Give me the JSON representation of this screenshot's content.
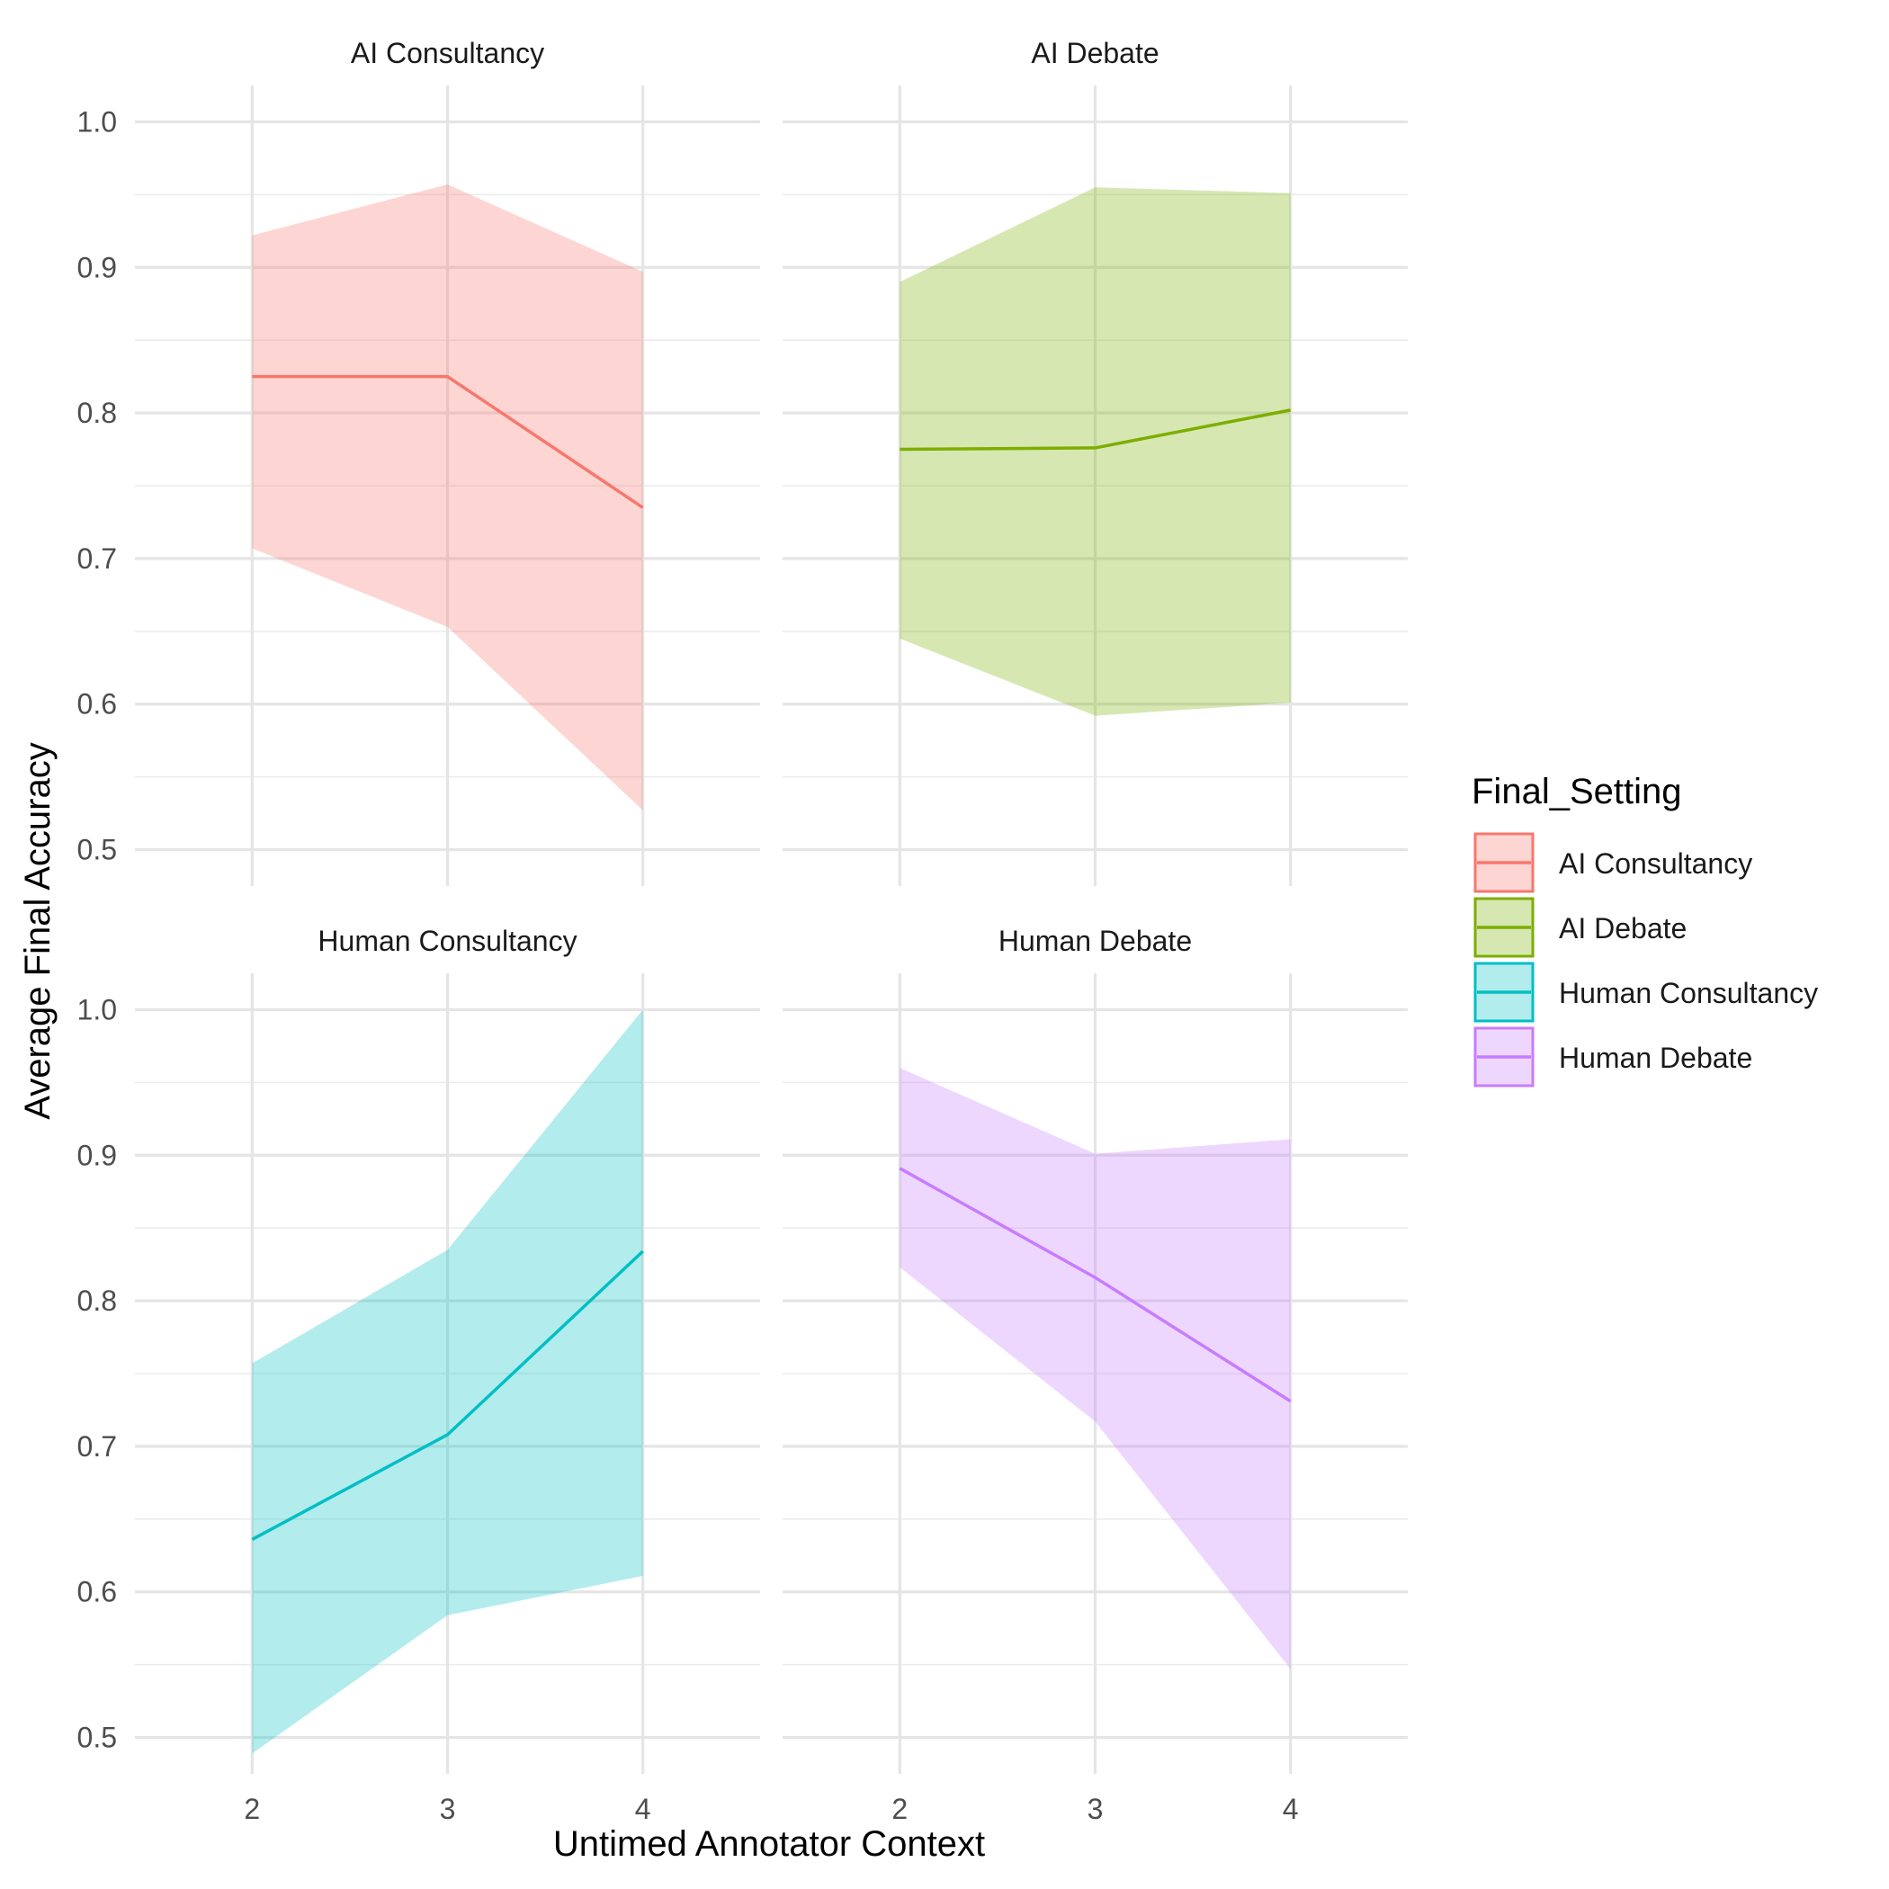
{
  "chart_data": {
    "type": "line",
    "xlabel": "Untimed Annotator Context",
    "ylabel": "Average Final Accuracy",
    "x": [
      2,
      3,
      4
    ],
    "xlim": [
      1.4,
      4.6
    ],
    "ylim": [
      0.475,
      1.025
    ],
    "y_ticks": [
      0.5,
      0.6,
      0.7,
      0.8,
      0.9,
      1.0
    ],
    "y_tick_labels": [
      "0.5",
      "0.6",
      "0.7",
      "0.8",
      "0.9",
      "1.0"
    ],
    "x_tick_labels": [
      "2",
      "3",
      "4"
    ],
    "grid": true,
    "legend": {
      "title": "Final_Setting",
      "position": "right"
    },
    "panels": [
      {
        "name": "AI Consultancy",
        "color": "#F8766D",
        "y": [
          0.825,
          0.825,
          0.735
        ],
        "lower": [
          0.707,
          0.653,
          0.527
        ],
        "upper": [
          0.922,
          0.957,
          0.897
        ]
      },
      {
        "name": "AI Debate",
        "color": "#7CAE00",
        "y": [
          0.775,
          0.776,
          0.802
        ],
        "lower": [
          0.645,
          0.592,
          0.601
        ],
        "upper": [
          0.89,
          0.955,
          0.951
        ]
      },
      {
        "name": "Human Consultancy",
        "color": "#00BFC4",
        "y": [
          0.636,
          0.708,
          0.834
        ],
        "lower": [
          0.489,
          0.584,
          0.611
        ],
        "upper": [
          0.757,
          0.835,
          1.0
        ]
      },
      {
        "name": "Human Debate",
        "color": "#C77CFF",
        "y": [
          0.891,
          0.816,
          0.731
        ],
        "lower": [
          0.823,
          0.717,
          0.547
        ],
        "upper": [
          0.96,
          0.901,
          0.911
        ]
      }
    ]
  }
}
